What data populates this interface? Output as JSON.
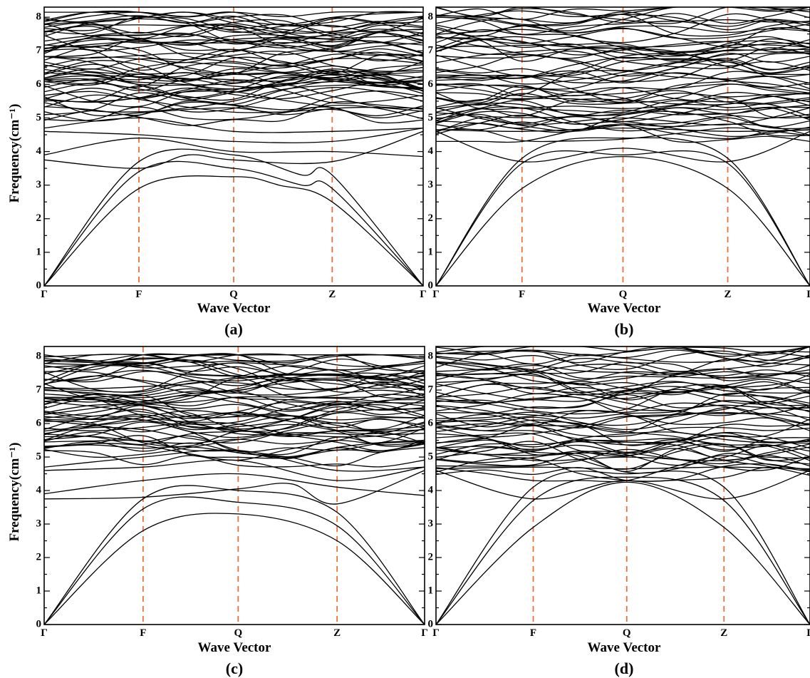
{
  "chart_data": [
    {
      "type": "line",
      "panel_label": "(a)",
      "xlabel": "Wave Vector",
      "ylabel": "Frequency(cm⁻¹)",
      "ylim": [
        0,
        8.3
      ],
      "yticks": [
        0,
        1,
        2,
        3,
        4,
        5,
        6,
        7,
        8
      ],
      "kpoints": [
        "Γ",
        "F",
        "Q",
        "Z",
        "Γ"
      ],
      "kpos": [
        0,
        0.25,
        0.5,
        0.76,
        1.0
      ],
      "acoustic_bands": [
        {
          "name": "acoustic-1",
          "points": [
            [
              0,
              0
            ],
            [
              0.25,
              2.9
            ],
            [
              0.5,
              3.25
            ],
            [
              0.62,
              3.0
            ],
            [
              0.76,
              2.5
            ],
            [
              1.0,
              0
            ]
          ]
        },
        {
          "name": "acoustic-2",
          "points": [
            [
              0,
              0
            ],
            [
              0.25,
              3.4
            ],
            [
              0.5,
              3.5
            ],
            [
              0.68,
              3.0
            ],
            [
              0.76,
              2.9
            ],
            [
              1.0,
              0
            ]
          ]
        },
        {
          "name": "acoustic-3",
          "points": [
            [
              0,
              0
            ],
            [
              0.25,
              3.7
            ],
            [
              0.5,
              3.9
            ],
            [
              0.68,
              3.3
            ],
            [
              0.76,
              3.3
            ],
            [
              1.0,
              0
            ]
          ]
        }
      ],
      "low_optical_bands": [
        {
          "name": "optical-1",
          "points": [
            [
              0,
              3.75
            ],
            [
              0.25,
              3.5
            ],
            [
              0.38,
              3.9
            ],
            [
              0.5,
              3.75
            ],
            [
              0.76,
              3.7
            ],
            [
              1.0,
              4.6
            ]
          ]
        },
        {
          "name": "optical-2",
          "points": [
            [
              0,
              3.9
            ],
            [
              0.25,
              4.4
            ],
            [
              0.5,
              4.0
            ],
            [
              0.76,
              4.0
            ],
            [
              1.0,
              3.85
            ]
          ]
        },
        {
          "name": "optical-3",
          "points": [
            [
              0,
              4.6
            ],
            [
              0.25,
              4.5
            ],
            [
              0.5,
              4.3
            ],
            [
              0.76,
              4.3
            ],
            [
              1.0,
              4.7
            ]
          ]
        },
        {
          "name": "optical-4",
          "points": [
            [
              0,
              4.7
            ],
            [
              0.25,
              5.0
            ],
            [
              0.5,
              4.6
            ],
            [
              0.76,
              4.6
            ],
            [
              1.0,
              4.7
            ]
          ]
        }
      ],
      "band_density": {
        "count": 58,
        "flat_top": 8.15,
        "dense_low": 6.0,
        "dense_high": 7.8
      }
    },
    {
      "type": "line",
      "panel_label": "(b)",
      "xlabel": "Wave Vector",
      "ylabel": "",
      "ylim": [
        0,
        8.3
      ],
      "yticks": [
        0,
        1,
        2,
        3,
        4,
        5,
        6,
        7,
        8
      ],
      "kpoints": [
        "Γ",
        "F",
        "Q",
        "Z",
        "Γ"
      ],
      "kpos": [
        0,
        0.23,
        0.5,
        0.78,
        1.0
      ],
      "acoustic_bands": [
        {
          "name": "acoustic-1",
          "points": [
            [
              0,
              0
            ],
            [
              0.23,
              2.9
            ],
            [
              0.5,
              3.85
            ],
            [
              0.78,
              2.9
            ],
            [
              1.0,
              0
            ]
          ]
        },
        {
          "name": "acoustic-2",
          "points": [
            [
              0,
              0
            ],
            [
              0.23,
              3.65
            ],
            [
              0.5,
              3.9
            ],
            [
              0.78,
              3.65
            ],
            [
              1.0,
              0
            ]
          ]
        },
        {
          "name": "acoustic-3",
          "points": [
            [
              0,
              0
            ],
            [
              0.23,
              3.8
            ],
            [
              0.5,
              4.4
            ],
            [
              0.78,
              3.8
            ],
            [
              1.0,
              0
            ]
          ]
        }
      ],
      "low_optical_bands": [
        {
          "name": "optical-1",
          "points": [
            [
              0,
              4.6
            ],
            [
              0.23,
              3.7
            ],
            [
              0.5,
              4.1
            ],
            [
              0.78,
              3.7
            ],
            [
              1.0,
              4.6
            ]
          ]
        },
        {
          "name": "optical-2",
          "points": [
            [
              0,
              4.65
            ],
            [
              0.23,
              4.6
            ],
            [
              0.5,
              4.7
            ],
            [
              0.78,
              4.6
            ],
            [
              1.0,
              4.65
            ]
          ]
        },
        {
          "name": "optical-3",
          "points": [
            [
              0,
              5.3
            ],
            [
              0.23,
              4.8
            ],
            [
              0.5,
              5.0
            ],
            [
              0.78,
              4.8
            ],
            [
              1.0,
              5.3
            ]
          ]
        }
      ],
      "band_density": {
        "count": 58,
        "flat_top": 8.3,
        "dense_low": 5.3,
        "dense_high": 8.0
      }
    },
    {
      "type": "line",
      "panel_label": "(c)",
      "xlabel": "Wave Vector",
      "ylabel": "Frequency(cm⁻¹)",
      "ylim": [
        0,
        8.3
      ],
      "yticks": [
        0,
        1,
        2,
        3,
        4,
        5,
        6,
        7,
        8
      ],
      "kpoints": [
        "Γ",
        "F",
        "Q",
        "Z",
        "Γ"
      ],
      "kpos": [
        0,
        0.26,
        0.51,
        0.77,
        1.0
      ],
      "acoustic_bands": [
        {
          "name": "acoustic-1",
          "points": [
            [
              0,
              0
            ],
            [
              0.26,
              2.8
            ],
            [
              0.51,
              3.3
            ],
            [
              0.77,
              2.5
            ],
            [
              1.0,
              0
            ]
          ]
        },
        {
          "name": "acoustic-2",
          "points": [
            [
              0,
              0
            ],
            [
              0.26,
              3.45
            ],
            [
              0.51,
              3.65
            ],
            [
              0.77,
              2.95
            ],
            [
              1.0,
              0
            ]
          ]
        },
        {
          "name": "acoustic-3",
          "points": [
            [
              0,
              0
            ],
            [
              0.26,
              3.75
            ],
            [
              0.51,
              4.0
            ],
            [
              0.77,
              3.35
            ],
            [
              1.0,
              0
            ]
          ]
        }
      ],
      "low_optical_bands": [
        {
          "name": "optical-1",
          "points": [
            [
              0,
              3.75
            ],
            [
              0.26,
              3.8
            ],
            [
              0.51,
              4.05
            ],
            [
              0.65,
              4.2
            ],
            [
              0.77,
              3.6
            ],
            [
              1.0,
              4.6
            ]
          ]
        },
        {
          "name": "optical-2",
          "points": [
            [
              0,
              3.9
            ],
            [
              0.26,
              4.3
            ],
            [
              0.51,
              4.5
            ],
            [
              0.77,
              4.1
            ],
            [
              1.0,
              3.85
            ]
          ]
        },
        {
          "name": "optical-3",
          "points": [
            [
              0,
              4.6
            ],
            [
              0.26,
              4.7
            ],
            [
              0.51,
              4.9
            ],
            [
              0.77,
              4.3
            ],
            [
              1.0,
              4.7
            ]
          ]
        },
        {
          "name": "optical-4",
          "points": [
            [
              0,
              4.7
            ],
            [
              0.26,
              5.0
            ],
            [
              0.51,
              5.2
            ],
            [
              0.77,
              4.6
            ],
            [
              1.0,
              4.7
            ]
          ]
        }
      ],
      "band_density": {
        "count": 58,
        "flat_top": 8.05,
        "dense_low": 6.0,
        "dense_high": 7.8
      }
    },
    {
      "type": "line",
      "panel_label": "(d)",
      "xlabel": "Wave Vector",
      "ylabel": "",
      "ylim": [
        0,
        8.3
      ],
      "yticks": [
        0,
        1,
        2,
        3,
        4,
        5,
        6,
        7,
        8
      ],
      "kpoints": [
        "Γ",
        "F",
        "Q",
        "Z",
        "Γ"
      ],
      "kpos": [
        0,
        0.26,
        0.51,
        0.77,
        1.0
      ],
      "acoustic_bands": [
        {
          "name": "acoustic-1",
          "points": [
            [
              0,
              0
            ],
            [
              0.26,
              2.9
            ],
            [
              0.51,
              4.25
            ],
            [
              0.77,
              2.9
            ],
            [
              1.0,
              0
            ]
          ]
        },
        {
          "name": "acoustic-2",
          "points": [
            [
              0,
              0
            ],
            [
              0.26,
              3.7
            ],
            [
              0.51,
              4.4
            ],
            [
              0.77,
              3.7
            ],
            [
              1.0,
              0
            ]
          ]
        },
        {
          "name": "acoustic-3",
          "points": [
            [
              0,
              0
            ],
            [
              0.26,
              4.1
            ],
            [
              0.51,
              4.5
            ],
            [
              0.77,
              4.1
            ],
            [
              1.0,
              0
            ]
          ]
        }
      ],
      "low_optical_bands": [
        {
          "name": "optical-1",
          "points": [
            [
              0,
              4.6
            ],
            [
              0.26,
              3.75
            ],
            [
              0.51,
              4.3
            ],
            [
              0.77,
              3.75
            ],
            [
              1.0,
              4.6
            ]
          ]
        },
        {
          "name": "optical-2",
          "points": [
            [
              0,
              4.65
            ],
            [
              0.26,
              4.7
            ],
            [
              0.51,
              4.65
            ],
            [
              0.77,
              4.7
            ],
            [
              1.0,
              4.65
            ]
          ]
        },
        {
          "name": "optical-3",
          "points": [
            [
              0,
              5.3
            ],
            [
              0.26,
              4.9
            ],
            [
              0.51,
              5.0
            ],
            [
              0.77,
              4.9
            ],
            [
              1.0,
              5.3
            ]
          ]
        }
      ],
      "band_density": {
        "count": 58,
        "flat_top": 8.3,
        "dense_low": 5.4,
        "dense_high": 8.1
      }
    }
  ],
  "colors": {
    "bands": "#000000",
    "high_symmetry_lines": "#e8703a",
    "axes": "#000000"
  }
}
